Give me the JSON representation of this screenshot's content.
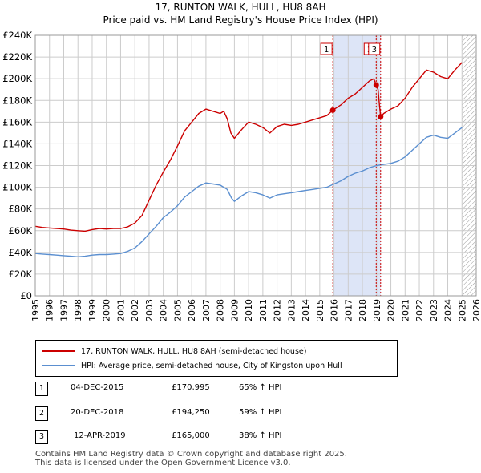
{
  "header": {
    "title_line1": "17, RUNTON WALK, HULL, HU8 8AH",
    "title_line2": "Price paid vs. HM Land Registry's House Price Index (HPI)"
  },
  "colors": {
    "property": "#cc0000",
    "hpi": "#5b8fd0",
    "shade": "#dde5f7",
    "grid": "#cccccc"
  },
  "chart_data": {
    "type": "line",
    "title": "Price paid vs. HM Land Registry's House Price Index (HPI)",
    "xlim": [
      1995,
      2026
    ],
    "ylim": [
      0,
      240000
    ],
    "x_ticks": [
      "1995",
      "1996",
      "1997",
      "1998",
      "1999",
      "2000",
      "2001",
      "2002",
      "2003",
      "2004",
      "2005",
      "2006",
      "2007",
      "2008",
      "2009",
      "2010",
      "2011",
      "2012",
      "2013",
      "2014",
      "2015",
      "2016",
      "2017",
      "2018",
      "2019",
      "2020",
      "2021",
      "2022",
      "2023",
      "2024",
      "2025",
      "2026"
    ],
    "y_ticks": [
      {
        "value": 0,
        "label": "£0"
      },
      {
        "value": 20000,
        "label": "£20K"
      },
      {
        "value": 40000,
        "label": "£40K"
      },
      {
        "value": 60000,
        "label": "£60K"
      },
      {
        "value": 80000,
        "label": "£80K"
      },
      {
        "value": 100000,
        "label": "£100K"
      },
      {
        "value": 120000,
        "label": "£120K"
      },
      {
        "value": 140000,
        "label": "£140K"
      },
      {
        "value": 160000,
        "label": "£160K"
      },
      {
        "value": 180000,
        "label": "£180K"
      },
      {
        "value": 200000,
        "label": "£200K"
      },
      {
        "value": 220000,
        "label": "£220K"
      },
      {
        "value": 240000,
        "label": "£240K"
      }
    ],
    "shaded_range": [
      2015.92,
      2019.28
    ],
    "future_hatch_from": 2025.0,
    "series": [
      {
        "name": "17, RUNTON WALK, HULL, HU8 8AH (semi-detached house)",
        "color": "#cc0000",
        "points": [
          [
            1995.0,
            64000
          ],
          [
            1995.5,
            63000
          ],
          [
            1996.0,
            62500
          ],
          [
            1996.5,
            62000
          ],
          [
            1997.0,
            61500
          ],
          [
            1997.5,
            60500
          ],
          [
            1998.0,
            60000
          ],
          [
            1998.5,
            59500
          ],
          [
            1999.0,
            61000
          ],
          [
            1999.5,
            62000
          ],
          [
            2000.0,
            61500
          ],
          [
            2000.5,
            62000
          ],
          [
            2001.0,
            62000
          ],
          [
            2001.5,
            63500
          ],
          [
            2002.0,
            67000
          ],
          [
            2002.5,
            74000
          ],
          [
            2003.0,
            88000
          ],
          [
            2003.5,
            102000
          ],
          [
            2004.0,
            114000
          ],
          [
            2004.5,
            125000
          ],
          [
            2005.0,
            138000
          ],
          [
            2005.5,
            152000
          ],
          [
            2006.0,
            160000
          ],
          [
            2006.5,
            168000
          ],
          [
            2007.0,
            172000
          ],
          [
            2007.5,
            170000
          ],
          [
            2008.0,
            168000
          ],
          [
            2008.25,
            170000
          ],
          [
            2008.5,
            163000
          ],
          [
            2008.75,
            150000
          ],
          [
            2009.0,
            145000
          ],
          [
            2009.5,
            153000
          ],
          [
            2010.0,
            160000
          ],
          [
            2010.5,
            158000
          ],
          [
            2011.0,
            155000
          ],
          [
            2011.5,
            150000
          ],
          [
            2012.0,
            156000
          ],
          [
            2012.5,
            158000
          ],
          [
            2013.0,
            157000
          ],
          [
            2013.5,
            158000
          ],
          [
            2014.0,
            160000
          ],
          [
            2014.5,
            162000
          ],
          [
            2015.0,
            164000
          ],
          [
            2015.5,
            166000
          ],
          [
            2015.92,
            170995
          ],
          [
            2016.5,
            176000
          ],
          [
            2017.0,
            182000
          ],
          [
            2017.5,
            186000
          ],
          [
            2018.0,
            192000
          ],
          [
            2018.5,
            198000
          ],
          [
            2018.8,
            200000
          ],
          [
            2018.97,
            194250
          ],
          [
            2019.1,
            190000
          ],
          [
            2019.2,
            175000
          ],
          [
            2019.28,
            165000
          ],
          [
            2019.5,
            168000
          ],
          [
            2020.0,
            172000
          ],
          [
            2020.5,
            175000
          ],
          [
            2021.0,
            182000
          ],
          [
            2021.5,
            192000
          ],
          [
            2022.0,
            200000
          ],
          [
            2022.5,
            208000
          ],
          [
            2023.0,
            206000
          ],
          [
            2023.5,
            202000
          ],
          [
            2024.0,
            200000
          ],
          [
            2024.5,
            208000
          ],
          [
            2025.0,
            215000
          ]
        ]
      },
      {
        "name": "HPI: Average price, semi-detached house, City of Kingston upon Hull",
        "color": "#5b8fd0",
        "points": [
          [
            1995.0,
            39000
          ],
          [
            1995.5,
            38500
          ],
          [
            1996.0,
            38000
          ],
          [
            1996.5,
            37500
          ],
          [
            1997.0,
            37000
          ],
          [
            1997.5,
            36500
          ],
          [
            1998.0,
            36000
          ],
          [
            1998.5,
            36500
          ],
          [
            1999.0,
            37500
          ],
          [
            1999.5,
            38000
          ],
          [
            2000.0,
            38000
          ],
          [
            2000.5,
            38500
          ],
          [
            2001.0,
            39000
          ],
          [
            2001.5,
            41000
          ],
          [
            2002.0,
            44000
          ],
          [
            2002.5,
            50000
          ],
          [
            2003.0,
            57000
          ],
          [
            2003.5,
            64000
          ],
          [
            2004.0,
            72000
          ],
          [
            2004.5,
            77000
          ],
          [
            2005.0,
            83000
          ],
          [
            2005.5,
            91000
          ],
          [
            2006.0,
            96000
          ],
          [
            2006.5,
            101000
          ],
          [
            2007.0,
            104000
          ],
          [
            2007.5,
            103000
          ],
          [
            2008.0,
            102000
          ],
          [
            2008.5,
            98000
          ],
          [
            2008.8,
            90000
          ],
          [
            2009.0,
            87000
          ],
          [
            2009.5,
            92000
          ],
          [
            2010.0,
            96000
          ],
          [
            2010.5,
            95000
          ],
          [
            2011.0,
            93000
          ],
          [
            2011.5,
            90000
          ],
          [
            2012.0,
            93000
          ],
          [
            2012.5,
            94000
          ],
          [
            2013.0,
            95000
          ],
          [
            2013.5,
            96000
          ],
          [
            2014.0,
            97000
          ],
          [
            2014.5,
            98000
          ],
          [
            2015.0,
            99000
          ],
          [
            2015.5,
            100000
          ],
          [
            2016.0,
            103000
          ],
          [
            2016.5,
            106000
          ],
          [
            2017.0,
            110000
          ],
          [
            2017.5,
            113000
          ],
          [
            2018.0,
            115000
          ],
          [
            2018.5,
            118000
          ],
          [
            2019.0,
            120000
          ],
          [
            2019.5,
            121000
          ],
          [
            2020.0,
            122000
          ],
          [
            2020.5,
            124000
          ],
          [
            2021.0,
            128000
          ],
          [
            2021.5,
            134000
          ],
          [
            2022.0,
            140000
          ],
          [
            2022.5,
            146000
          ],
          [
            2023.0,
            148000
          ],
          [
            2023.5,
            146000
          ],
          [
            2024.0,
            145000
          ],
          [
            2024.5,
            150000
          ],
          [
            2025.0,
            155000
          ]
        ]
      }
    ],
    "markers": [
      {
        "label": "1",
        "x": 2015.92,
        "y": 170995
      },
      {
        "label": "2",
        "x": 2018.97,
        "y": 194250
      },
      {
        "label": "3",
        "x": 2019.28,
        "y": 165000
      }
    ]
  },
  "legend": {
    "property_label": "17, RUNTON WALK, HULL, HU8 8AH (semi-detached house)",
    "hpi_label": "HPI: Average price, semi-detached house, City of Kingston upon Hull"
  },
  "transactions": [
    {
      "num": "1",
      "date": "04-DEC-2015",
      "price": "£170,995",
      "hpi_change": "65% ↑ HPI"
    },
    {
      "num": "2",
      "date": "20-DEC-2018",
      "price": "£194,250",
      "hpi_change": "59% ↑ HPI"
    },
    {
      "num": "3",
      "date": "12-APR-2019",
      "price": "£165,000",
      "hpi_change": "38% ↑ HPI"
    }
  ],
  "footer": {
    "line1": "Contains HM Land Registry data © Crown copyright and database right 2025.",
    "line2": "This data is licensed under the Open Government Licence v3.0."
  }
}
